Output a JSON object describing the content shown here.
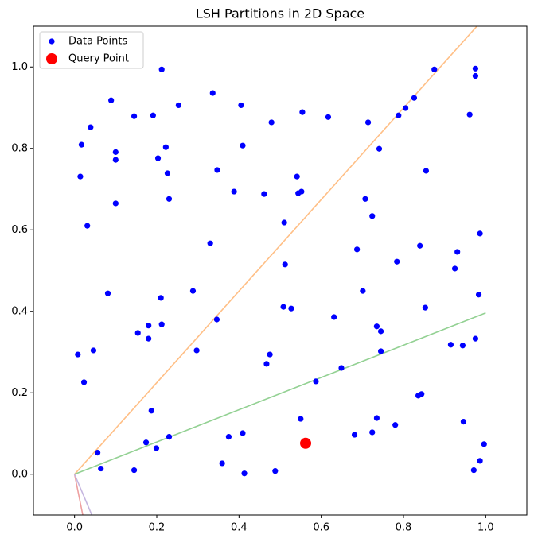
{
  "chart_data": {
    "type": "scatter",
    "title": "LSH Partitions in 2D Space",
    "xlim": [
      -0.1,
      1.1
    ],
    "ylim": [
      -0.1,
      1.1
    ],
    "xticks": [
      {
        "value": 0,
        "label": "0.0"
      },
      {
        "value": 0.2,
        "label": "0.2"
      },
      {
        "value": 0.4,
        "label": "0.4"
      },
      {
        "value": 0.6,
        "label": "0.6"
      },
      {
        "value": 0.8,
        "label": "0.8"
      },
      {
        "value": 1,
        "label": "1.0"
      }
    ],
    "yticks": [
      {
        "value": 0,
        "label": "0.0"
      },
      {
        "value": 0.2,
        "label": "0.2"
      },
      {
        "value": 0.4,
        "label": "0.4"
      },
      {
        "value": 0.6,
        "label": "0.6"
      },
      {
        "value": 0.8,
        "label": "0.8"
      },
      {
        "value": 1,
        "label": "1.0"
      }
    ],
    "legend": "upper left",
    "lines": [
      {
        "color": "#ffbf86",
        "x": [
          0,
          1.0
        ],
        "y": [
          0,
          1.124
        ]
      },
      {
        "color": "#93d193",
        "x": [
          0,
          1.0
        ],
        "y": [
          0,
          0.396
        ]
      },
      {
        "color": "#eea0a0",
        "x": [
          0,
          0.02
        ],
        "y": [
          0,
          -0.1
        ]
      },
      {
        "color": "#c5b6e0",
        "x": [
          0,
          0.042
        ],
        "y": [
          0,
          -0.1
        ]
      }
    ],
    "series": [
      {
        "name": "Data Points",
        "color": "#0000ff",
        "size": 3.6,
        "x": [
          0.212,
          0.975,
          0.875,
          0.975,
          0.089,
          0.336,
          0.405,
          0.253,
          0.039,
          0.145,
          0.191,
          0.554,
          0.617,
          0.479,
          0.714,
          0.826,
          0.805,
          0.788,
          0.961,
          0.017,
          0.1,
          0.1,
          0.222,
          0.203,
          0.409,
          0.741,
          0.014,
          0.226,
          0.347,
          0.541,
          0.855,
          0.388,
          0.461,
          0.544,
          0.552,
          0.707,
          0.23,
          0.1,
          0.031,
          0.51,
          0.724,
          0.33,
          0.687,
          0.84,
          0.986,
          0.931,
          0.784,
          0.512,
          0.925,
          0.081,
          0.288,
          0.701,
          0.21,
          0.983,
          0.508,
          0.527,
          0.853,
          0.631,
          0.346,
          0.212,
          0.18,
          0.154,
          0.735,
          0.745,
          0.18,
          0.975,
          0.915,
          0.944,
          0.297,
          0.046,
          0.745,
          0.008,
          0.475,
          0.467,
          0.649,
          0.023,
          0.587,
          0.844,
          0.836,
          0.187,
          0.55,
          0.735,
          0.946,
          0.78,
          0.724,
          0.681,
          0.409,
          0.375,
          0.23,
          0.174,
          0.996,
          0.056,
          0.199,
          0.986,
          0.359,
          0.064,
          0.145,
          0.488,
          0.971,
          0.413
        ],
        "y": [
          0.994,
          0.996,
          0.994,
          0.978,
          0.918,
          0.936,
          0.906,
          0.906,
          0.852,
          0.879,
          0.881,
          0.889,
          0.877,
          0.864,
          0.864,
          0.924,
          0.899,
          0.881,
          0.883,
          0.809,
          0.791,
          0.772,
          0.803,
          0.776,
          0.807,
          0.799,
          0.731,
          0.739,
          0.747,
          0.731,
          0.745,
          0.694,
          0.688,
          0.69,
          0.694,
          0.676,
          0.676,
          0.665,
          0.61,
          0.618,
          0.634,
          0.567,
          0.552,
          0.561,
          0.591,
          0.546,
          0.522,
          0.515,
          0.505,
          0.444,
          0.45,
          0.45,
          0.433,
          0.441,
          0.411,
          0.407,
          0.409,
          0.386,
          0.38,
          0.368,
          0.365,
          0.347,
          0.363,
          0.351,
          0.333,
          0.333,
          0.318,
          0.316,
          0.304,
          0.304,
          0.302,
          0.294,
          0.294,
          0.271,
          0.261,
          0.226,
          0.228,
          0.197,
          0.193,
          0.156,
          0.136,
          0.138,
          0.129,
          0.121,
          0.103,
          0.097,
          0.101,
          0.092,
          0.092,
          0.078,
          0.074,
          0.053,
          0.064,
          0.033,
          0.027,
          0.014,
          0.01,
          0.008,
          0.01,
          0.002
        ]
      },
      {
        "name": "Query Point",
        "color": "#ff0000",
        "size": 7,
        "x": [
          0.562
        ],
        "y": [
          0.076
        ]
      }
    ]
  }
}
